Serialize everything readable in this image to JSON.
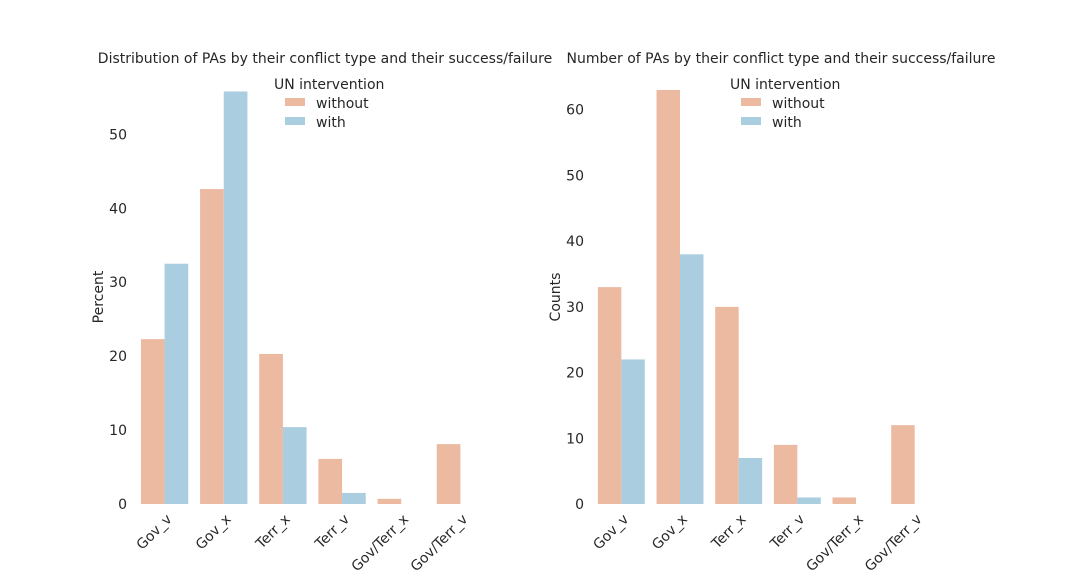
{
  "colors": {
    "without": "#ecb9a1",
    "with": "#abcde0"
  },
  "chart_data": [
    {
      "type": "bar",
      "title": "Distribution of PAs by their conflict type and their success/failure",
      "xlabel": "",
      "ylabel": "Percent",
      "categories": [
        "Gov_v",
        "Gov_x",
        "Terr_x",
        "Terr_v",
        "Gov/Terr_x",
        "Gov/Terr_v"
      ],
      "series": [
        {
          "name": "without",
          "values": [
            22.3,
            42.6,
            20.3,
            6.1,
            0.7,
            8.1
          ]
        },
        {
          "name": "with",
          "values": [
            32.5,
            55.8,
            10.4,
            1.5,
            0,
            0
          ]
        }
      ],
      "ylim": [
        0,
        56
      ],
      "yticks": [
        0,
        10,
        20,
        30,
        40,
        50
      ],
      "legend": {
        "title": "UN intervention",
        "placement": "top-center"
      },
      "grid": false
    },
    {
      "type": "bar",
      "title": "Number of PAs by their conflict type and their success/failure",
      "xlabel": "",
      "ylabel": "Counts",
      "categories": [
        "Gov_v",
        "Gov_x",
        "Terr_x",
        "Terr_v",
        "Gov/Terr_x",
        "Gov/Terr_v"
      ],
      "series": [
        {
          "name": "without",
          "values": [
            33,
            63,
            30,
            9,
            1,
            12
          ]
        },
        {
          "name": "with",
          "values": [
            22,
            38,
            7,
            1,
            0,
            0
          ]
        }
      ],
      "ylim": [
        0,
        63
      ],
      "yticks": [
        0,
        10,
        20,
        30,
        40,
        50,
        60
      ],
      "legend": {
        "title": "UN intervention",
        "placement": "top-center"
      },
      "grid": false
    }
  ]
}
